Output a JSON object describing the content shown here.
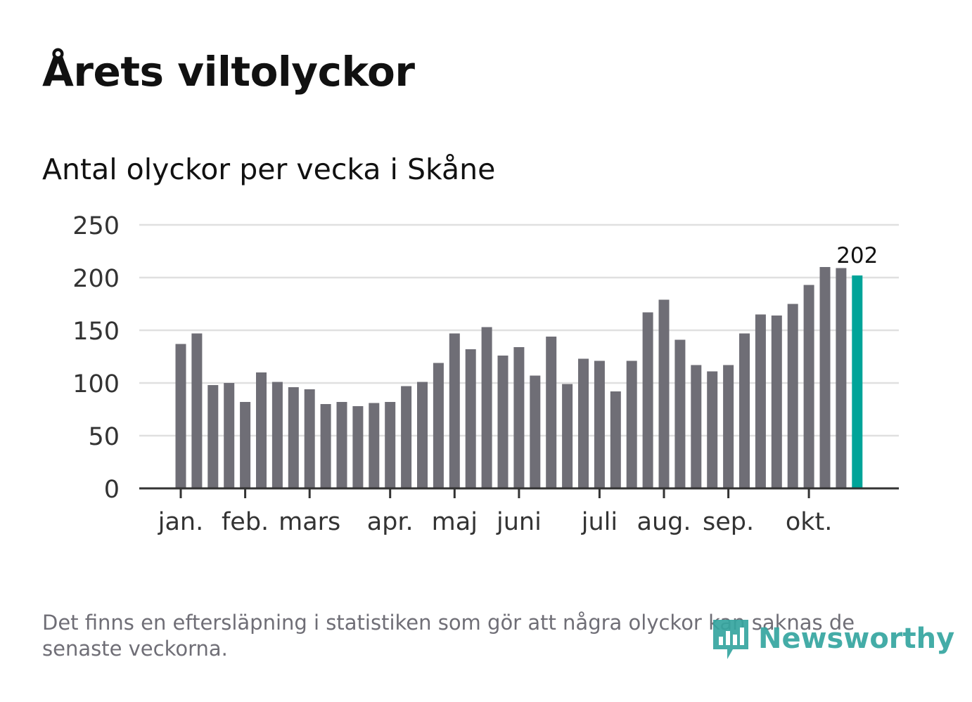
{
  "title": "Årets viltolyckor",
  "subtitle": "Antal olyckor per vecka i Skåne",
  "note": "Det finns en eftersläpning i statistiken som gör att några olyckor kan saknas de senaste veckorna.",
  "brand": {
    "name": "Newsworthy",
    "color": "#35a5a0"
  },
  "colors": {
    "bar": "#6f6e76",
    "highlight": "#00a499",
    "grid": "#e0e0e0",
    "axis": "#333333"
  },
  "chart_data": {
    "type": "bar",
    "title": "Årets viltolyckor",
    "subtitle": "Antal olyckor per vecka i Skåne",
    "ylim": [
      0,
      250
    ],
    "yticks": [
      "0",
      "50",
      "100",
      "150",
      "200",
      "250"
    ],
    "grid": true,
    "month_labels": [
      {
        "label": "jan.",
        "week": 1
      },
      {
        "label": "feb.",
        "week": 5
      },
      {
        "label": "mars",
        "week": 9
      },
      {
        "label": "apr.",
        "week": 14
      },
      {
        "label": "maj",
        "week": 18
      },
      {
        "label": "juni",
        "week": 22
      },
      {
        "label": "juli",
        "week": 27
      },
      {
        "label": "aug.",
        "week": 31
      },
      {
        "label": "sep.",
        "week": 35
      },
      {
        "label": "okt.",
        "week": 40
      }
    ],
    "values": [
      137,
      147,
      98,
      100,
      82,
      110,
      101,
      96,
      94,
      80,
      82,
      78,
      81,
      82,
      97,
      101,
      119,
      147,
      132,
      153,
      126,
      134,
      107,
      144,
      99,
      123,
      121,
      92,
      121,
      167,
      179,
      141,
      117,
      111,
      117,
      147,
      165,
      164,
      175,
      193,
      210,
      209,
      202
    ],
    "highlight_index": 42,
    "highlight_label": "202"
  }
}
